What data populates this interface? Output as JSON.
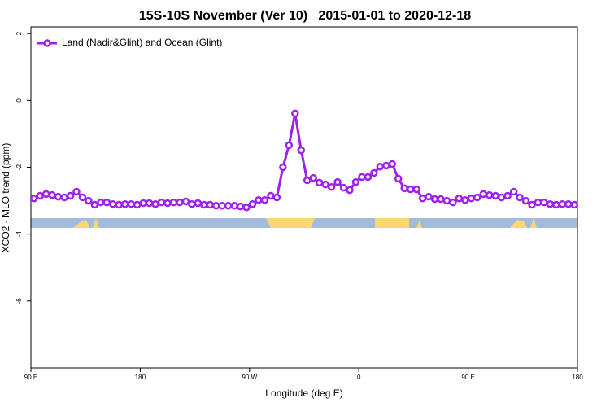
{
  "chart_data": {
    "type": "line",
    "title": "15S-10S November (Ver 10)   2015-01-01 to 2020-12-18",
    "xlabel": "Longitude (deg E)",
    "ylabel": "XCO2 - MLO trend (ppm)",
    "xlim": [
      90,
      540
    ],
    "ylim": [
      -8,
      2.2
    ],
    "xticks": [
      {
        "value": 90,
        "label": "90 E"
      },
      {
        "value": 180,
        "label": "180"
      },
      {
        "value": 270,
        "label": "90 W"
      },
      {
        "value": 360,
        "label": "0"
      },
      {
        "value": 450,
        "label": "90 E"
      },
      {
        "value": 540,
        "label": "180"
      }
    ],
    "yticks": [
      2,
      0,
      -2,
      -4,
      -6
    ],
    "legend": "top-left",
    "x": [
      92.5,
      97.5,
      102.5,
      107.5,
      112.5,
      117.5,
      122.5,
      127.5,
      132.5,
      137.5,
      142.5,
      147.5,
      152.5,
      157.5,
      162.5,
      167.5,
      172.5,
      177.5,
      182.5,
      187.5,
      192.5,
      197.5,
      202.5,
      207.5,
      212.5,
      217.5,
      222.5,
      227.5,
      232.5,
      237.5,
      242.5,
      247.5,
      252.5,
      257.5,
      262.5,
      267.5,
      272.5,
      277.5,
      282.5,
      287.5,
      292.5,
      297.5,
      302.5,
      307.5,
      312.5,
      317.5,
      322.5,
      327.5,
      332.5,
      337.5,
      342.5,
      347.5,
      352.5,
      357.5,
      362.5,
      367.5,
      372.5,
      377.5,
      382.5,
      387.5,
      392.5,
      397.5,
      402.5,
      407.5,
      412.5,
      417.5,
      422.5,
      427.5,
      432.5,
      437.5,
      442.5,
      447.5,
      452.5,
      457.5,
      462.5,
      467.5,
      472.5,
      477.5,
      482.5,
      487.5,
      492.5,
      497.5,
      502.5,
      507.5,
      512.5,
      517.5,
      522.5,
      527.5,
      532.5,
      537.5
    ],
    "series": [
      {
        "name": "Land (Nadir&Glint) and Ocean (Glint)",
        "color": "#a020f0",
        "values": [
          -2.93,
          -2.85,
          -2.8,
          -2.83,
          -2.88,
          -2.9,
          -2.85,
          -2.73,
          -2.9,
          -3.0,
          -3.12,
          -3.05,
          -3.05,
          -3.1,
          -3.12,
          -3.1,
          -3.1,
          -3.12,
          -3.07,
          -3.07,
          -3.1,
          -3.05,
          -3.07,
          -3.05,
          -3.05,
          -3.02,
          -3.1,
          -3.07,
          -3.12,
          -3.12,
          -3.15,
          -3.15,
          -3.15,
          -3.15,
          -3.17,
          -3.2,
          -3.1,
          -2.98,
          -2.98,
          -2.85,
          -2.9,
          -2.0,
          -1.34,
          -0.39,
          -1.49,
          -2.39,
          -2.32,
          -2.46,
          -2.51,
          -2.59,
          -2.44,
          -2.61,
          -2.68,
          -2.44,
          -2.29,
          -2.29,
          -2.17,
          -1.98,
          -1.95,
          -1.9,
          -2.34,
          -2.63,
          -2.66,
          -2.66,
          -2.93,
          -2.88,
          -2.95,
          -2.95,
          -3.0,
          -3.05,
          -2.93,
          -2.98,
          -2.93,
          -2.9,
          -2.8,
          -2.83,
          -2.85,
          -2.9,
          -2.85,
          -2.73,
          -2.9,
          -3.0,
          -3.12,
          -3.05,
          -3.05,
          -3.1,
          -3.12,
          -3.1,
          -3.1,
          -3.12
        ]
      }
    ]
  }
}
